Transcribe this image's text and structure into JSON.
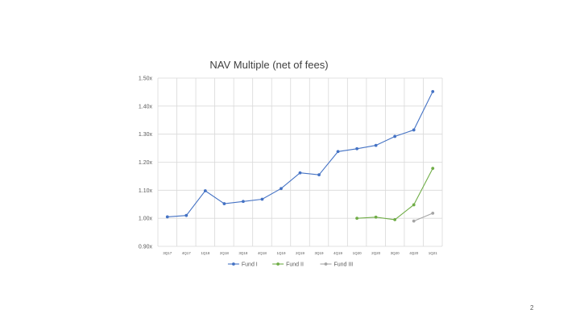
{
  "page": {
    "number": "2"
  },
  "chart_data": {
    "type": "line",
    "title": "NAV Multiple (net of fees)",
    "xlabel": "",
    "ylabel": "",
    "categories": [
      "3Q17",
      "4Q17",
      "1Q18",
      "2Q18",
      "3Q18",
      "4Q18",
      "1Q19",
      "2Q19",
      "3Q19",
      "4Q19",
      "1Q20",
      "2Q20",
      "3Q20",
      "4Q20",
      "1Q21"
    ],
    "ylim": [
      0.9,
      1.5
    ],
    "yticks": [
      {
        "value": 1.5,
        "label": "1.50x"
      },
      {
        "value": 1.4,
        "label": "1.40x"
      },
      {
        "value": 1.3,
        "label": "1.30x"
      },
      {
        "value": 1.2,
        "label": "1.20x"
      },
      {
        "value": 1.1,
        "label": "1.10x"
      },
      {
        "value": 1.0,
        "label": "1.00x"
      },
      {
        "value": 0.9,
        "label": "0.90x"
      }
    ],
    "grid": true,
    "legend_position": "bottom",
    "series": [
      {
        "name": "Fund I",
        "color": "#4472c4",
        "values": [
          1.005,
          1.01,
          1.098,
          1.052,
          1.06,
          1.068,
          1.106,
          1.162,
          1.155,
          1.238,
          1.248,
          1.26,
          1.292,
          1.315,
          1.452
        ]
      },
      {
        "name": "Fund II",
        "color": "#70ad47",
        "values": [
          null,
          null,
          null,
          null,
          null,
          null,
          null,
          null,
          null,
          null,
          1.0,
          1.004,
          0.995,
          1.048,
          1.178
        ]
      },
      {
        "name": "Fund III",
        "color": "#a5a5a5",
        "values": [
          null,
          null,
          null,
          null,
          null,
          null,
          null,
          null,
          null,
          null,
          null,
          null,
          null,
          0.99,
          1.018
        ]
      }
    ]
  }
}
